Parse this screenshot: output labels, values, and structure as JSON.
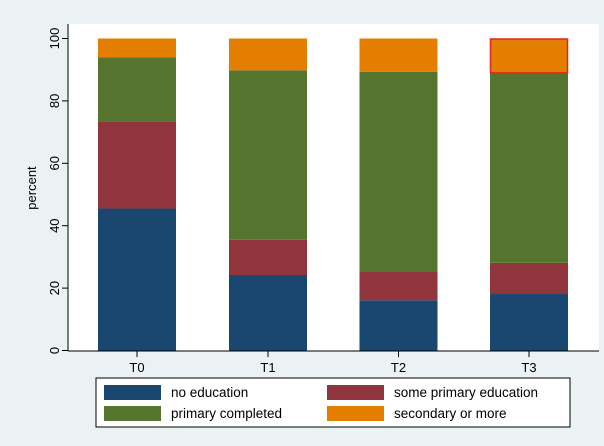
{
  "chart_data": {
    "type": "bar",
    "stacked": true,
    "categories": [
      "T0",
      "T1",
      "T2",
      "T3"
    ],
    "series": [
      {
        "name": "no education",
        "color": "#1a476f",
        "values": [
          45.5,
          24.2,
          16.1,
          18.1
        ]
      },
      {
        "name": "some primary education",
        "color": "#90353b",
        "values": [
          28.0,
          11.3,
          9.2,
          10.0
        ]
      },
      {
        "name": "primary completed",
        "color": "#55752f",
        "values": [
          20.5,
          54.3,
          64.0,
          60.7
        ]
      },
      {
        "name": "secondary or more",
        "color": "#e37e00",
        "values": [
          6.0,
          10.2,
          10.7,
          11.2
        ]
      }
    ],
    "title": "",
    "xlabel": "",
    "ylabel": "percent",
    "ylim": [
      0,
      100
    ],
    "yticks": [
      0,
      20,
      40,
      60,
      80,
      100
    ],
    "grid": false,
    "legend_position": "bottom",
    "highlight": {
      "category": "T3",
      "series": "secondary or more",
      "outline_color": "#e8231d"
    },
    "background_color": "#eaf2f3",
    "plot_background_color": "#ffffff"
  }
}
